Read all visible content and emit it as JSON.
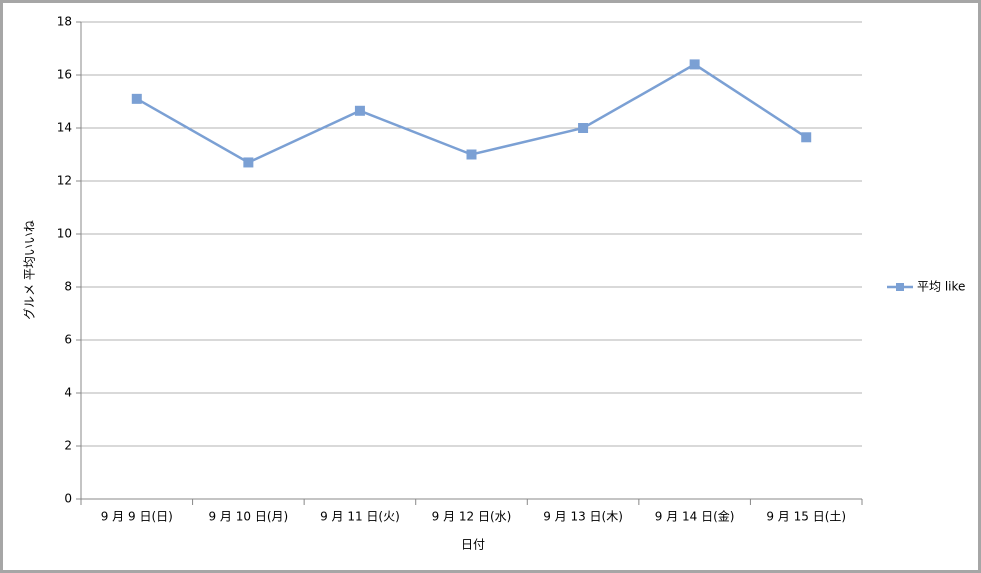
{
  "chart_data": {
    "type": "line",
    "y_label": "グルメ 平均いいね",
    "x_label": "日付",
    "categories": [
      "9 月 9 日(日)",
      "9 月 10 日(月)",
      "9 月 11 日(火)",
      "9 月 12 日(水)",
      "9 月 13 日(木)",
      "9 月 14 日(金)",
      "9 月 15 日(土)"
    ],
    "series": [
      {
        "name": "平均 like",
        "color": "#7ba0d4",
        "values": [
          15.1,
          12.7,
          14.65,
          13.0,
          14.0,
          16.4,
          13.65
        ]
      }
    ],
    "ylim": [
      0,
      18
    ],
    "yticks": [
      0,
      2,
      4,
      6,
      8,
      10,
      12,
      14,
      16,
      18
    ],
    "grid": true,
    "legend": "right"
  }
}
